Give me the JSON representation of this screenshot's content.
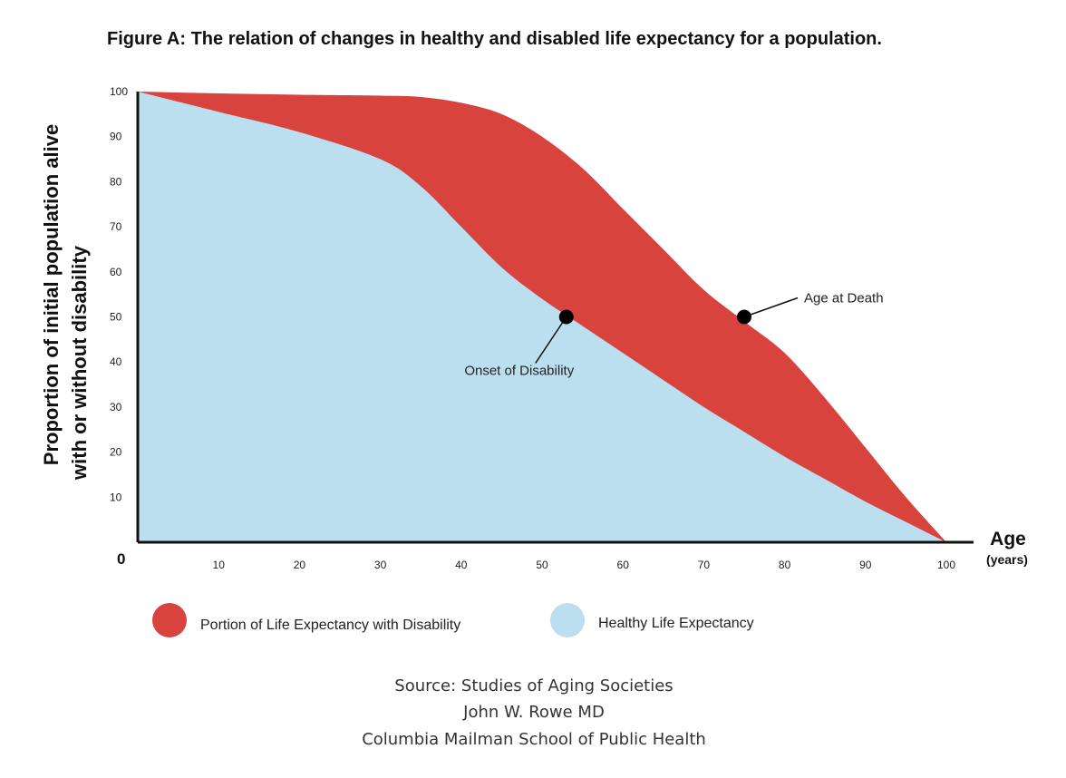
{
  "chart_data": {
    "type": "area",
    "title": "Figure A:  The relation of changes in healthy and disabled life expectancy for a population.",
    "ylabel_line1": "Proportion of initial population alive",
    "ylabel_line2": "with or without disability",
    "xlabel": "Age",
    "xlabel_unit": "(years)",
    "origin_label": "0",
    "xlim": [
      0,
      100
    ],
    "ylim": [
      0,
      100
    ],
    "x_ticks": [
      "10",
      "20",
      "30",
      "40",
      "50",
      "60",
      "70",
      "80",
      "90",
      "100"
    ],
    "y_ticks": [
      "10",
      "20",
      "30",
      "40",
      "50",
      "60",
      "70",
      "80",
      "90",
      "100"
    ],
    "series": [
      {
        "name": "Portion of Life Expectancy with Disability",
        "color": "#d9433e",
        "x": [
          0,
          10,
          20,
          30,
          35,
          40,
          45,
          50,
          55,
          60,
          65,
          70,
          75,
          80,
          85,
          90,
          95,
          100
        ],
        "y": [
          100,
          99.6,
          99.3,
          99.1,
          98.8,
          97.5,
          95,
          90,
          83,
          74,
          65,
          56,
          49,
          42,
          32,
          21,
          10,
          0
        ]
      },
      {
        "name": "Healthy Life Expectancy",
        "color": "#bcdff0",
        "x": [
          0,
          10,
          20,
          30,
          35,
          40,
          45,
          50,
          55,
          60,
          65,
          70,
          75,
          80,
          85,
          90,
          95,
          100
        ],
        "y": [
          100,
          95.5,
          91,
          85,
          79,
          70,
          61,
          54,
          48,
          42,
          36,
          30,
          24.5,
          19,
          14,
          9,
          4.5,
          0
        ]
      }
    ],
    "annotations": [
      {
        "label": "Onset of Disability",
        "x": 53,
        "y": 50
      },
      {
        "label": "Age at Death",
        "x": 75,
        "y": 50
      }
    ]
  },
  "legend": {
    "items": [
      {
        "label": "Portion of Life Expectancy with Disability",
        "color": "#d9433e"
      },
      {
        "label": "Healthy Life Expectancy",
        "color": "#bcdff0"
      }
    ]
  },
  "source": {
    "line1": "Source: Studies of Aging Societies",
    "line2": "John W. Rowe MD",
    "line3": "Columbia Mailman School of Public Health"
  }
}
